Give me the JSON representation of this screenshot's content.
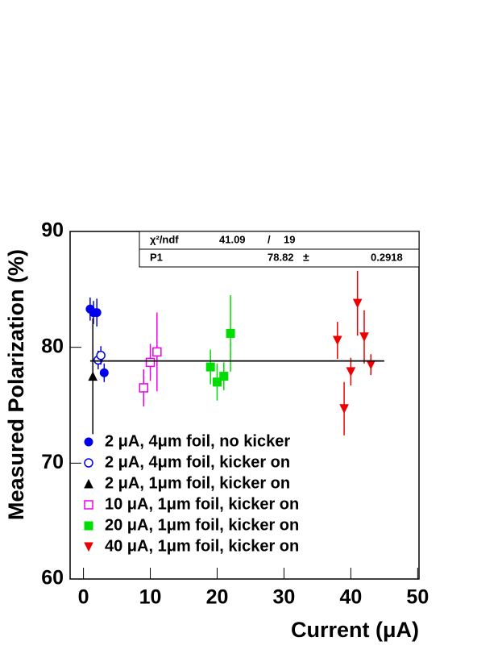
{
  "chart_data": {
    "type": "scatter",
    "x_label": "Current (μA)",
    "y_label": "Measured Polarization (%)",
    "xlim": [
      -2,
      50.2
    ],
    "ylim": [
      60,
      90
    ],
    "xticks": [
      0,
      10,
      20,
      30,
      40,
      50
    ],
    "yticks": [
      60,
      70,
      80,
      90
    ],
    "series": [
      {
        "name": "2 μA, 4μm foil, no kicker",
        "color": "#0000ee",
        "marker": "circle",
        "x": [
          1.0,
          1.5,
          2.0,
          3.1
        ],
        "values": [
          83.3,
          83.0,
          83.0,
          77.8
        ],
        "errors": [
          1.0,
          1.0,
          1.2,
          0.8
        ]
      },
      {
        "name": "2 μA, 4μm foil, kicker on",
        "color": "#0000ee",
        "marker": "circle-open",
        "x": [
          2.2,
          2.6
        ],
        "values": [
          78.9,
          79.3
        ],
        "errors": [
          0.8,
          0.8
        ]
      },
      {
        "name": "2 μA, 1μm foil, kicker on",
        "color": "#000000",
        "marker": "triangle-up",
        "x": [
          1.4
        ],
        "values": [
          77.5
        ],
        "errors": [
          5.0
        ]
      },
      {
        "name": "10 μA, 1μm foil, kicker on",
        "color": "#ee00ee",
        "marker": "square-open",
        "x": [
          9,
          10,
          11
        ],
        "values": [
          76.5,
          78.7,
          79.6
        ],
        "errors": [
          1.6,
          1.6,
          3.4
        ]
      },
      {
        "name": "20 μA, 1μm foil, kicker on",
        "color": "#00dd00",
        "marker": "square",
        "x": [
          19,
          20,
          21,
          22
        ],
        "values": [
          78.3,
          77.0,
          77.5,
          81.2
        ],
        "errors": [
          1.5,
          1.6,
          1.2,
          3.3
        ]
      },
      {
        "name": "40 μA, 1μm foil, kicker on",
        "color": "#ee0000",
        "marker": "triangle-down",
        "x": [
          38,
          39,
          40,
          41,
          42,
          43
        ],
        "values": [
          80.6,
          74.7,
          77.9,
          83.8,
          80.9,
          78.5
        ],
        "errors": [
          1.6,
          2.3,
          1.2,
          2.8,
          2.3,
          0.9
        ]
      }
    ],
    "fit_range": [
      1,
      45
    ],
    "stats": {
      "chi2_label": "χ²/ndf",
      "chi2": 41.09,
      "sep": "/",
      "ndf": 19,
      "p1_label": "P1",
      "p1": 78.82,
      "pm": "±",
      "p1_error": 0.2918
    }
  }
}
